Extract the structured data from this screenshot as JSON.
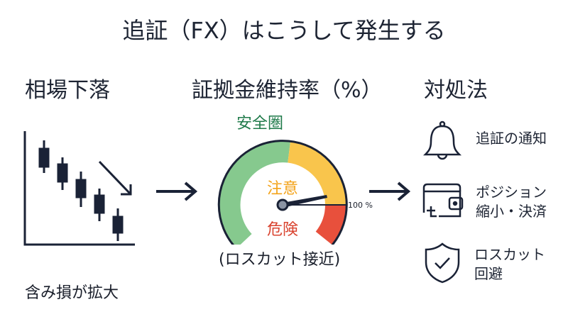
{
  "title": "追証（FX）はこうして発生する",
  "columns": {
    "market_drop": {
      "heading": "相場下落",
      "caption": "含み損が拡大"
    },
    "margin_ratio": {
      "heading": "証拠金維持率（%）",
      "zone_safe": "安全圏",
      "zone_caution": "注意",
      "zone_danger": "危険",
      "threshold_label": "100 %",
      "caption": "(ロスカット接近)",
      "colors": {
        "safe": "#86c98e",
        "caution": "#f9c54c",
        "danger": "#e8503c",
        "safe_text": "#1f7a4a",
        "caution_text": "#f3a31a",
        "danger_text": "#d9432f"
      }
    },
    "response": {
      "heading": "対処法",
      "items": [
        {
          "icon": "bell-icon",
          "line1": "追証の通知",
          "line2": ""
        },
        {
          "icon": "wallet-icon",
          "line1": "ポジション",
          "line2": "縮小・決済"
        },
        {
          "icon": "shield-check-icon",
          "line1": "ロスカット",
          "line2": "回避"
        }
      ]
    }
  }
}
